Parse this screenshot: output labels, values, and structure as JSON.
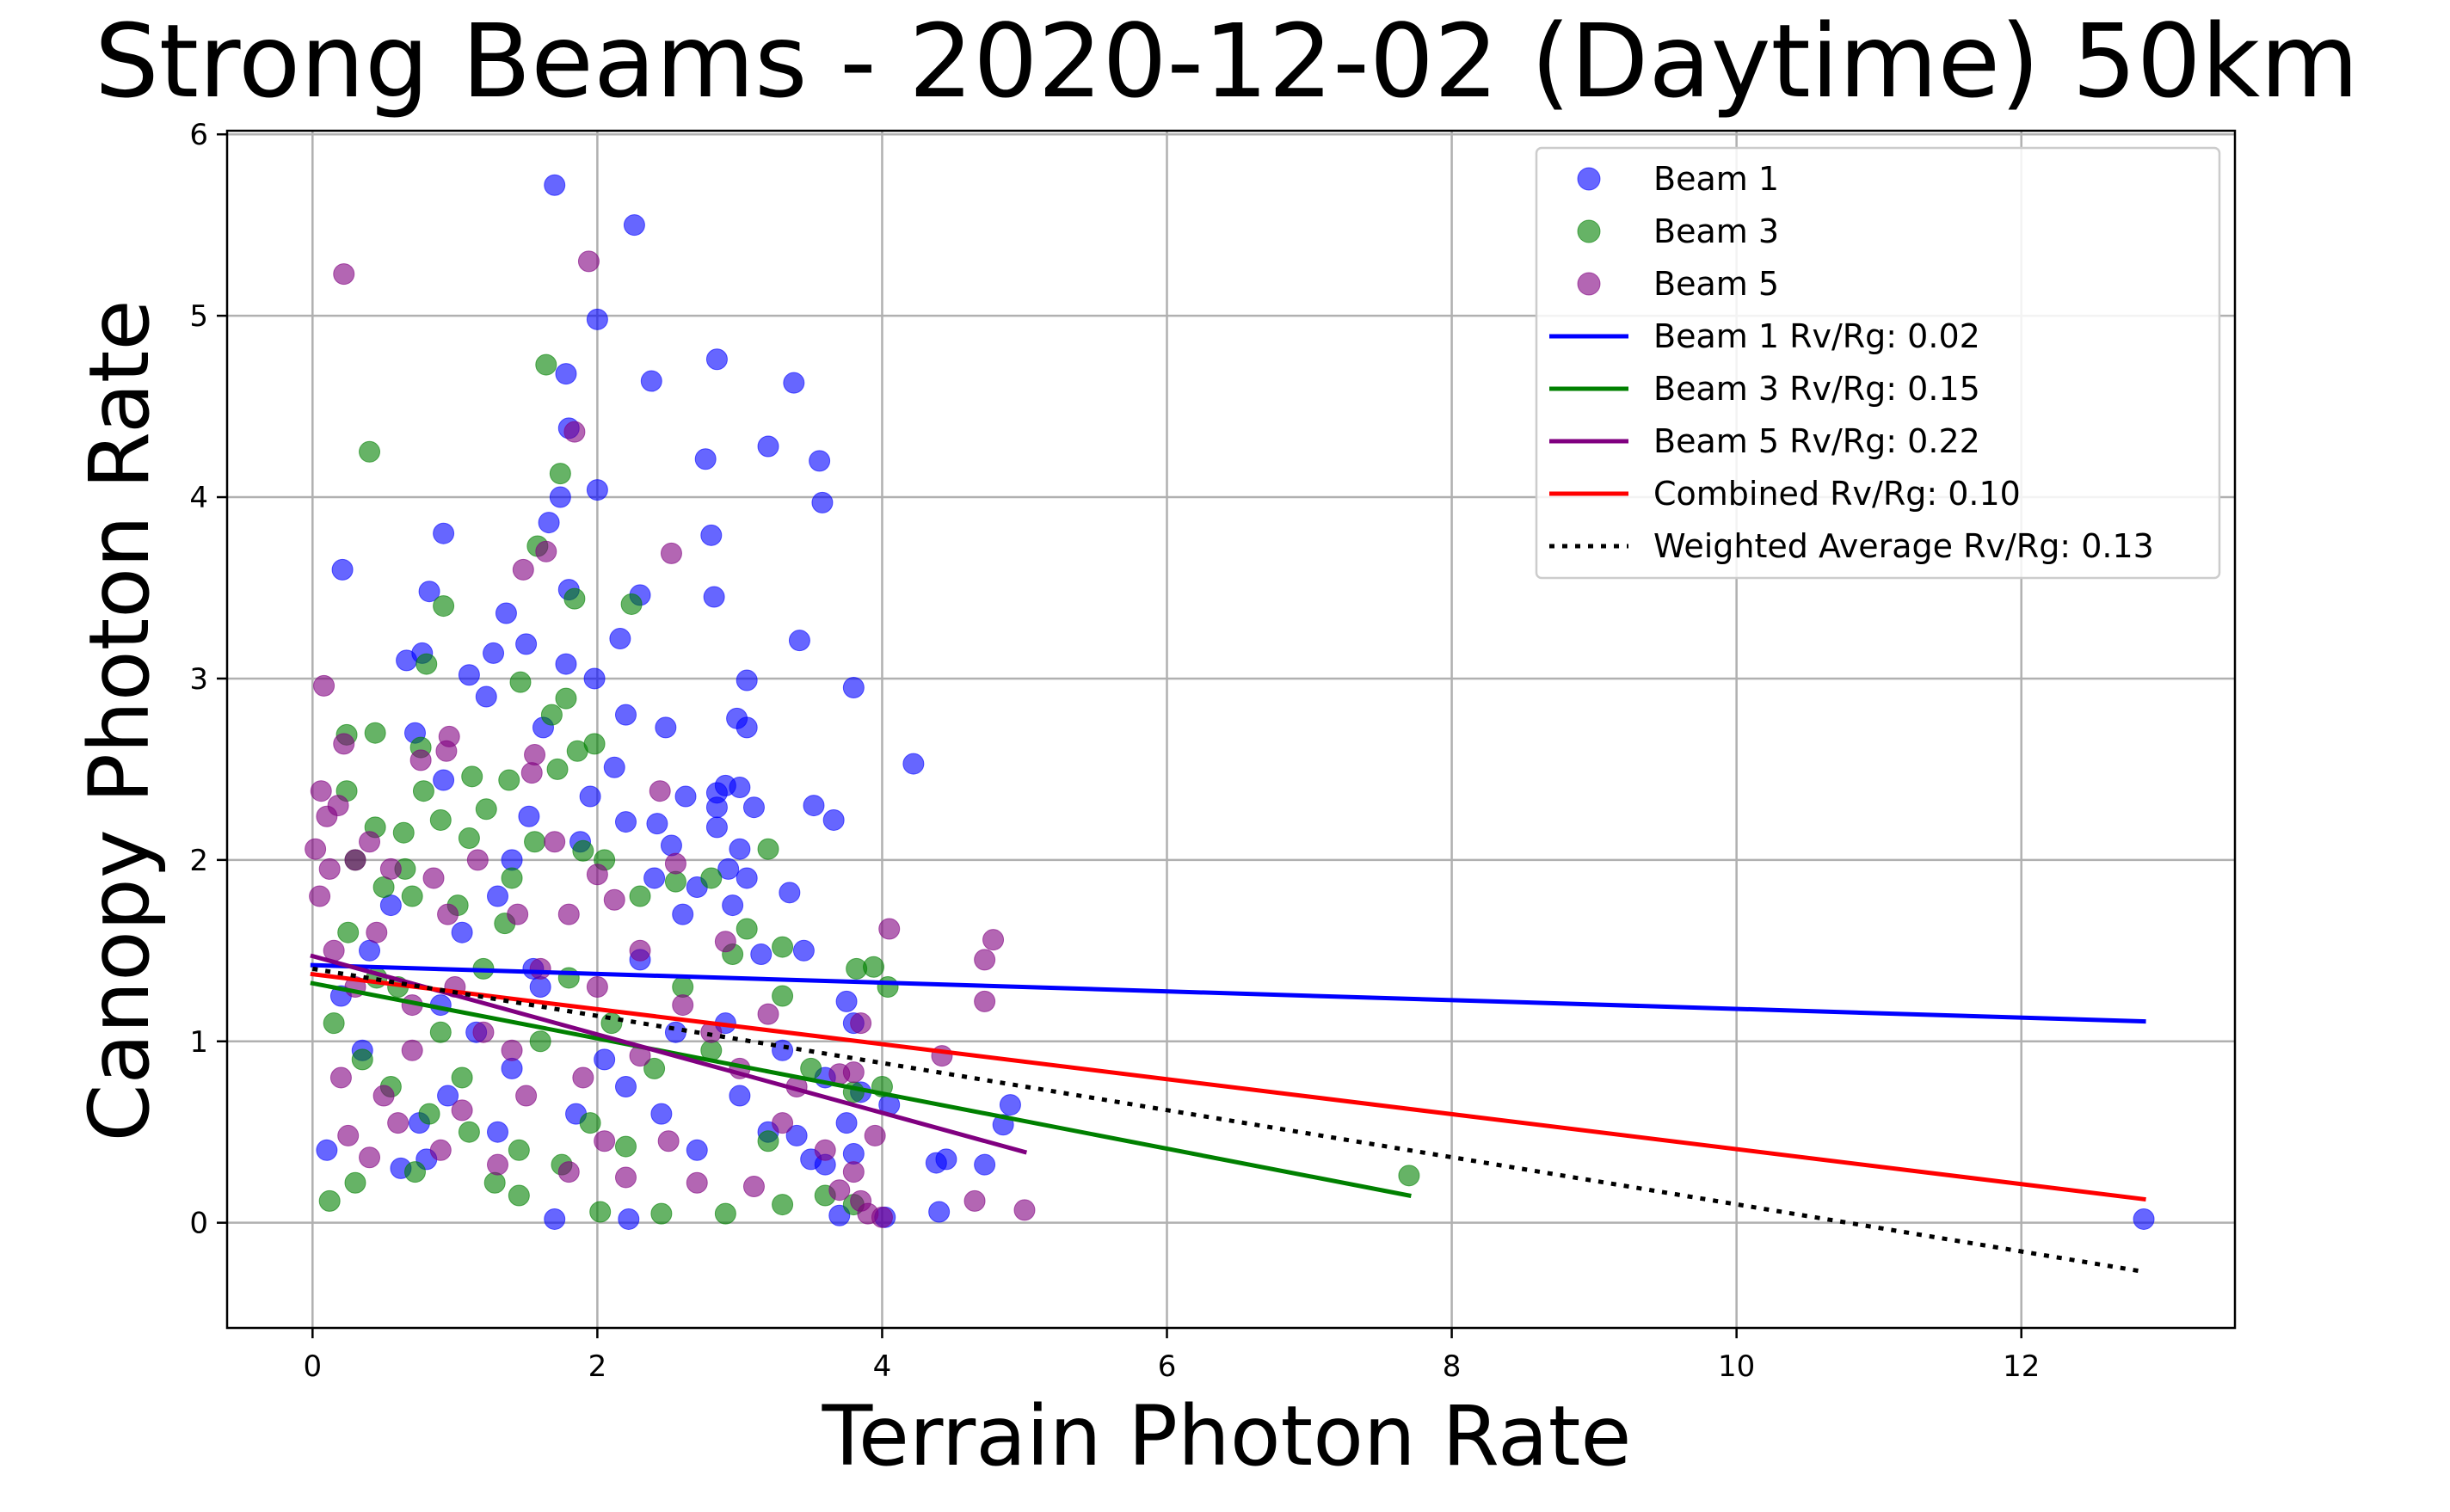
{
  "chart_data": {
    "type": "scatter",
    "title": "Strong Beams - 2020-12-02 (Daytime) 50km",
    "xlabel": "Terrain Photon Rate",
    "ylabel": "Canopy Photon Rate",
    "xlim": [
      -0.6,
      13.5
    ],
    "ylim": [
      -0.58,
      6.02
    ],
    "xticks": [
      0,
      2,
      4,
      6,
      8,
      10,
      12
    ],
    "yticks": [
      0,
      1,
      2,
      3,
      4,
      5,
      6
    ],
    "grid": true,
    "legend_position": "top-right",
    "colors": {
      "beam1": "#0000ff",
      "beam3": "#008000",
      "beam5": "#800080",
      "combined": "#ff0000",
      "weighted": "#000000",
      "grid": "#b0b0b0"
    },
    "series": [
      {
        "name": "Beam 1",
        "kind": "scatter",
        "color": "#0000ff",
        "points": [
          [
            1.7,
            5.72
          ],
          [
            2.26,
            5.5
          ],
          [
            2.0,
            4.98
          ],
          [
            2.84,
            4.76
          ],
          [
            1.78,
            4.68
          ],
          [
            2.38,
            4.64
          ],
          [
            3.38,
            4.63
          ],
          [
            1.8,
            4.38
          ],
          [
            3.2,
            4.28
          ],
          [
            2.76,
            4.21
          ],
          [
            3.56,
            4.2
          ],
          [
            2.0,
            4.04
          ],
          [
            1.74,
            4.0
          ],
          [
            3.58,
            3.97
          ],
          [
            1.66,
            3.86
          ],
          [
            0.92,
            3.8
          ],
          [
            2.8,
            3.79
          ],
          [
            0.21,
            3.6
          ],
          [
            1.8,
            3.49
          ],
          [
            0.82,
            3.48
          ],
          [
            2.3,
            3.46
          ],
          [
            2.82,
            3.45
          ],
          [
            1.36,
            3.36
          ],
          [
            2.16,
            3.22
          ],
          [
            3.42,
            3.21
          ],
          [
            1.5,
            3.19
          ],
          [
            0.77,
            3.14
          ],
          [
            1.27,
            3.14
          ],
          [
            0.66,
            3.1
          ],
          [
            1.78,
            3.08
          ],
          [
            1.1,
            3.02
          ],
          [
            1.98,
            3.0
          ],
          [
            3.05,
            2.99
          ],
          [
            3.8,
            2.95
          ],
          [
            1.22,
            2.9
          ],
          [
            2.2,
            2.8
          ],
          [
            2.98,
            2.78
          ],
          [
            3.05,
            2.73
          ],
          [
            2.48,
            2.73
          ],
          [
            1.62,
            2.73
          ],
          [
            0.72,
            2.7
          ],
          [
            4.22,
            2.53
          ],
          [
            2.12,
            2.51
          ],
          [
            0.92,
            2.44
          ],
          [
            2.9,
            2.41
          ],
          [
            3.0,
            2.4
          ],
          [
            2.84,
            2.37
          ],
          [
            2.62,
            2.35
          ],
          [
            1.95,
            2.35
          ],
          [
            3.52,
            2.3
          ],
          [
            2.84,
            2.29
          ],
          [
            3.1,
            2.29
          ],
          [
            1.52,
            2.24
          ],
          [
            3.66,
            2.22
          ],
          [
            2.2,
            2.21
          ],
          [
            2.42,
            2.2
          ],
          [
            2.84,
            2.18
          ],
          [
            1.88,
            2.1
          ],
          [
            2.52,
            2.08
          ],
          [
            3.0,
            2.06
          ],
          [
            1.4,
            2.0
          ],
          [
            2.92,
            1.95
          ],
          [
            2.4,
            1.9
          ],
          [
            3.05,
            1.9
          ],
          [
            2.7,
            1.85
          ],
          [
            3.35,
            1.82
          ],
          [
            1.3,
            1.8
          ],
          [
            2.95,
            1.75
          ],
          [
            2.6,
            1.7
          ],
          [
            3.45,
            1.5
          ],
          [
            3.15,
            1.48
          ],
          [
            2.3,
            1.45
          ],
          [
            1.05,
            1.6
          ],
          [
            1.55,
            1.4
          ],
          [
            3.75,
            1.22
          ],
          [
            3.8,
            1.1
          ],
          [
            2.55,
            1.05
          ],
          [
            3.3,
            0.95
          ],
          [
            2.05,
            0.9
          ],
          [
            1.4,
            0.85
          ],
          [
            3.6,
            0.8
          ],
          [
            3.85,
            0.72
          ],
          [
            4.05,
            0.65
          ],
          [
            4.9,
            0.65
          ],
          [
            3.0,
            0.7
          ],
          [
            3.2,
            0.5
          ],
          [
            3.75,
            0.55
          ],
          [
            3.4,
            0.48
          ],
          [
            4.85,
            0.54
          ],
          [
            4.38,
            0.33
          ],
          [
            4.45,
            0.35
          ],
          [
            4.72,
            0.32
          ],
          [
            3.5,
            0.35
          ],
          [
            3.8,
            0.38
          ],
          [
            3.6,
            0.32
          ],
          [
            2.7,
            0.4
          ],
          [
            0.8,
            0.35
          ],
          [
            0.62,
            0.3
          ],
          [
            0.1,
            0.4
          ],
          [
            1.7,
            0.02
          ],
          [
            2.22,
            0.02
          ],
          [
            3.7,
            0.04
          ],
          [
            4.02,
            0.03
          ],
          [
            4.4,
            0.06
          ],
          [
            12.86,
            0.02
          ],
          [
            0.4,
            1.5
          ],
          [
            0.55,
            1.75
          ],
          [
            0.9,
            1.2
          ],
          [
            1.15,
            1.05
          ],
          [
            0.35,
            0.95
          ],
          [
            1.85,
            0.6
          ],
          [
            2.2,
            0.75
          ],
          [
            0.95,
            0.7
          ],
          [
            1.6,
            1.3
          ],
          [
            0.2,
            1.25
          ],
          [
            0.75,
            0.55
          ],
          [
            1.3,
            0.5
          ],
          [
            2.45,
            0.6
          ],
          [
            2.9,
            1.1
          ]
        ]
      },
      {
        "name": "Beam 3",
        "kind": "scatter",
        "color": "#008000",
        "points": [
          [
            1.64,
            4.73
          ],
          [
            0.4,
            4.25
          ],
          [
            1.74,
            4.13
          ],
          [
            1.58,
            3.73
          ],
          [
            0.92,
            3.4
          ],
          [
            1.84,
            3.44
          ],
          [
            2.24,
            3.41
          ],
          [
            0.8,
            3.08
          ],
          [
            1.46,
            2.98
          ],
          [
            1.78,
            2.89
          ],
          [
            1.68,
            2.8
          ],
          [
            0.24,
            2.69
          ],
          [
            0.44,
            2.7
          ],
          [
            1.98,
            2.64
          ],
          [
            0.76,
            2.62
          ],
          [
            1.86,
            2.6
          ],
          [
            1.72,
            2.5
          ],
          [
            1.12,
            2.46
          ],
          [
            1.38,
            2.44
          ],
          [
            0.24,
            2.38
          ],
          [
            0.78,
            2.38
          ],
          [
            1.22,
            2.28
          ],
          [
            0.9,
            2.22
          ],
          [
            0.44,
            2.18
          ],
          [
            1.1,
            2.12
          ],
          [
            1.56,
            2.1
          ],
          [
            0.64,
            2.15
          ],
          [
            1.9,
            2.05
          ],
          [
            2.05,
            2.0
          ],
          [
            0.3,
            2.0
          ],
          [
            0.5,
            1.85
          ],
          [
            0.7,
            1.8
          ],
          [
            1.02,
            1.75
          ],
          [
            1.4,
            1.9
          ],
          [
            2.3,
            1.8
          ],
          [
            2.55,
            1.88
          ],
          [
            2.8,
            1.9
          ],
          [
            3.2,
            2.06
          ],
          [
            3.05,
            1.62
          ],
          [
            2.95,
            1.48
          ],
          [
            3.3,
            1.52
          ],
          [
            3.82,
            1.4
          ],
          [
            3.94,
            1.41
          ],
          [
            4.04,
            1.3
          ],
          [
            3.3,
            1.25
          ],
          [
            2.6,
            1.3
          ],
          [
            1.8,
            1.35
          ],
          [
            1.2,
            1.4
          ],
          [
            0.6,
            1.3
          ],
          [
            0.15,
            1.1
          ],
          [
            0.35,
            0.9
          ],
          [
            0.55,
            0.75
          ],
          [
            0.82,
            0.6
          ],
          [
            1.1,
            0.5
          ],
          [
            1.45,
            0.4
          ],
          [
            1.75,
            0.32
          ],
          [
            1.95,
            0.55
          ],
          [
            2.4,
            0.85
          ],
          [
            2.8,
            0.95
          ],
          [
            3.5,
            0.85
          ],
          [
            3.8,
            0.72
          ],
          [
            4.0,
            0.75
          ],
          [
            3.6,
            0.15
          ],
          [
            3.8,
            0.1
          ],
          [
            3.3,
            0.1
          ],
          [
            2.45,
            0.05
          ],
          [
            2.9,
            0.05
          ],
          [
            1.45,
            0.15
          ],
          [
            0.3,
            0.22
          ],
          [
            0.12,
            0.12
          ],
          [
            7.7,
            0.26
          ],
          [
            0.72,
            0.28
          ],
          [
            1.28,
            0.22
          ],
          [
            2.02,
            0.06
          ],
          [
            3.2,
            0.45
          ],
          [
            2.2,
            0.42
          ],
          [
            0.9,
            1.05
          ],
          [
            1.6,
            1.0
          ],
          [
            0.45,
            1.35
          ],
          [
            1.05,
            0.8
          ],
          [
            2.1,
            1.1
          ],
          [
            0.25,
            1.6
          ],
          [
            1.35,
            1.65
          ],
          [
            0.65,
            1.95
          ]
        ]
      },
      {
        "name": "Beam 5",
        "kind": "scatter",
        "color": "#800080",
        "points": [
          [
            0.22,
            5.23
          ],
          [
            1.94,
            5.3
          ],
          [
            1.84,
            4.36
          ],
          [
            2.52,
            3.69
          ],
          [
            1.64,
            3.7
          ],
          [
            1.48,
            3.6
          ],
          [
            0.08,
            2.96
          ],
          [
            0.96,
            2.68
          ],
          [
            0.22,
            2.64
          ],
          [
            0.94,
            2.6
          ],
          [
            0.76,
            2.55
          ],
          [
            1.56,
            2.58
          ],
          [
            1.54,
            2.48
          ],
          [
            0.06,
            2.38
          ],
          [
            0.18,
            2.3
          ],
          [
            2.44,
            2.38
          ],
          [
            0.1,
            2.24
          ],
          [
            0.02,
            2.06
          ],
          [
            0.3,
            2.0
          ],
          [
            0.55,
            1.95
          ],
          [
            0.85,
            1.9
          ],
          [
            1.16,
            2.0
          ],
          [
            1.7,
            2.1
          ],
          [
            2.0,
            1.92
          ],
          [
            2.12,
            1.78
          ],
          [
            2.55,
            1.98
          ],
          [
            2.9,
            1.55
          ],
          [
            1.8,
            1.7
          ],
          [
            1.44,
            1.7
          ],
          [
            0.95,
            1.7
          ],
          [
            0.45,
            1.6
          ],
          [
            0.15,
            1.5
          ],
          [
            4.05,
            1.62
          ],
          [
            4.78,
            1.56
          ],
          [
            4.72,
            1.45
          ],
          [
            4.72,
            1.22
          ],
          [
            4.42,
            0.92
          ],
          [
            3.8,
            0.83
          ],
          [
            3.7,
            0.82
          ],
          [
            3.4,
            0.75
          ],
          [
            3.85,
            1.1
          ],
          [
            2.8,
            1.05
          ],
          [
            2.3,
            0.92
          ],
          [
            1.9,
            0.8
          ],
          [
            1.5,
            0.7
          ],
          [
            1.05,
            0.62
          ],
          [
            0.6,
            0.55
          ],
          [
            0.25,
            0.48
          ],
          [
            0.4,
            0.36
          ],
          [
            0.9,
            0.4
          ],
          [
            1.3,
            0.32
          ],
          [
            1.8,
            0.28
          ],
          [
            2.2,
            0.25
          ],
          [
            2.7,
            0.22
          ],
          [
            3.1,
            0.2
          ],
          [
            3.7,
            0.18
          ],
          [
            3.85,
            0.12
          ],
          [
            4.0,
            0.03
          ],
          [
            3.9,
            0.05
          ],
          [
            3.95,
            0.48
          ],
          [
            4.65,
            0.12
          ],
          [
            5.0,
            0.07
          ],
          [
            3.8,
            0.28
          ],
          [
            3.6,
            0.4
          ],
          [
            2.5,
            0.45
          ],
          [
            1.2,
            1.05
          ],
          [
            0.7,
            1.2
          ],
          [
            0.3,
            1.3
          ],
          [
            2.0,
            1.3
          ],
          [
            2.6,
            1.2
          ],
          [
            3.2,
            1.15
          ],
          [
            0.05,
            1.8
          ],
          [
            0.12,
            1.95
          ],
          [
            0.4,
            2.1
          ],
          [
            0.7,
            0.95
          ],
          [
            1.6,
            1.4
          ],
          [
            2.3,
            1.5
          ],
          [
            3.0,
            0.85
          ],
          [
            1.0,
            1.3
          ],
          [
            0.2,
            0.8
          ],
          [
            2.05,
            0.45
          ],
          [
            1.4,
            0.95
          ],
          [
            0.5,
            0.7
          ],
          [
            3.3,
            0.55
          ]
        ]
      },
      {
        "name": "Beam 1 Rv/Rg: 0.02",
        "kind": "line",
        "color": "#0000ff",
        "dashed": false,
        "x": [
          0.0,
          12.86
        ],
        "y": [
          1.42,
          1.11
        ]
      },
      {
        "name": "Beam 3 Rv/Rg: 0.15",
        "kind": "line",
        "color": "#008000",
        "dashed": false,
        "x": [
          0.0,
          7.7
        ],
        "y": [
          1.32,
          0.15
        ]
      },
      {
        "name": "Beam 5 Rv/Rg: 0.22",
        "kind": "line",
        "color": "#800080",
        "dashed": false,
        "x": [
          0.0,
          5.0
        ],
        "y": [
          1.47,
          0.39
        ]
      },
      {
        "name": "Combined Rv/Rg: 0.10",
        "kind": "line",
        "color": "#ff0000",
        "dashed": false,
        "x": [
          0.0,
          12.86
        ],
        "y": [
          1.37,
          0.13
        ]
      },
      {
        "name": "Weighted Average Rv/Rg: 0.13",
        "kind": "line",
        "color": "#000000",
        "dashed": true,
        "x": [
          0.0,
          12.86
        ],
        "y": [
          1.4,
          -0.27
        ]
      }
    ]
  }
}
